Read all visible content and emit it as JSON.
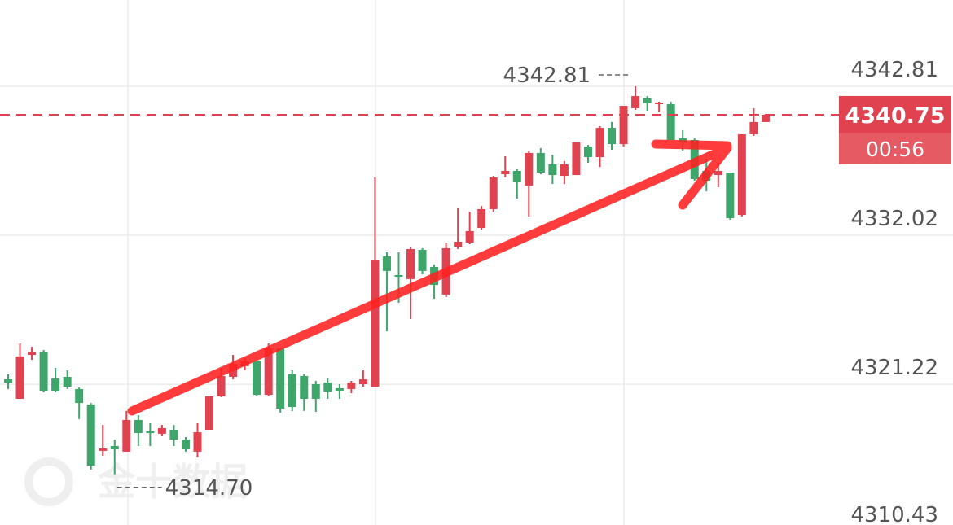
{
  "chart_data": {
    "type": "candlestick",
    "ylim": [
      4311.03,
      4349.06
    ],
    "yticks": [
      4310.43,
      4321.22,
      4332.02,
      4342.81
    ],
    "grid": true,
    "up_color": "#e0434f",
    "down_color": "#3fa66b",
    "open": [
      4321.58,
      4320.17,
      4323.35,
      4323.59,
      4321.64,
      4321.76,
      4320.88,
      4319.76,
      4316.4,
      4316.75,
      4316.34,
      4318.64,
      4317.81,
      4317.64,
      4317.93,
      4317.22,
      4316.34,
      4317.93,
      4320.35,
      4321.76,
      4322.53,
      4322.94,
      4320.46,
      4323.82,
      4321.94,
      4321.82,
      4321.23,
      4321.35,
      4320.94,
      4320.88,
      4321.23,
      4321.05,
      4330.49,
      4329.13,
      4328.84,
      4330.96,
      4329.72,
      4327.72,
      4331.19,
      4331.49,
      4332.55,
      4333.91,
      4336.44,
      4336.68,
      4335.62,
      4337.98,
      4337.15,
      4336.32,
      4336.38,
      4338.45,
      4337.68,
      4339.8,
      4338.62,
      4341.22,
      4341.93,
      4341.51,
      4341.51,
      4339.04,
      4338.92,
      4336.68,
      4336.38,
      4336.56,
      4333.49,
      4339.33,
      4340.22
    ],
    "high": [
      4321.94,
      4324.18,
      4323.94,
      4323.71,
      4322.41,
      4322.23,
      4320.99,
      4319.87,
      4318.28,
      4317.22,
      4319.29,
      4318.99,
      4318.4,
      4318.28,
      4318.28,
      4317.4,
      4318.4,
      4320.35,
      4322.41,
      4323.35,
      4323.12,
      4322.94,
      4324.18,
      4323.82,
      4322.23,
      4321.94,
      4321.47,
      4321.64,
      4321.23,
      4321.47,
      4322.23,
      4336.21,
      4330.78,
      4330.78,
      4331.14,
      4331.08,
      4329.9,
      4331.49,
      4333.97,
      4333.73,
      4334.14,
      4336.32,
      4337.74,
      4336.8,
      4338.15,
      4338.33,
      4337.86,
      4337.39,
      4338.74,
      4338.56,
      4339.92,
      4340.22,
      4341.39,
      4342.81,
      4342.1,
      4341.69,
      4341.69,
      4339.63,
      4339.04,
      4337.56,
      4337.27,
      4336.56,
      4339.33,
      4341.22,
      4340.81
    ],
    "low": [
      4320.88,
      4320.17,
      4323.0,
      4320.64,
      4320.64,
      4320.88,
      4318.7,
      4315.04,
      4316.04,
      4314.7,
      4316.34,
      4316.75,
      4316.75,
      4317.46,
      4316.75,
      4316.34,
      4315.92,
      4317.93,
      4320.29,
      4321.58,
      4322.23,
      4320.41,
      4320.35,
      4319.17,
      4319.29,
      4319.29,
      4319.23,
      4320.17,
      4320.17,
      4320.58,
      4321.05,
      4321.05,
      4325.06,
      4327.13,
      4325.95,
      4329.19,
      4327.42,
      4327.54,
      4331.02,
      4331.37,
      4332.43,
      4333.73,
      4336.21,
      4334.67,
      4333.38,
      4336.44,
      4335.73,
      4335.73,
      4336.38,
      4337.27,
      4336.97,
      4338.21,
      4338.45,
      4341.1,
      4341.04,
      4340.92,
      4338.92,
      4338.15,
      4335.97,
      4335.2,
      4335.5,
      4333.14,
      4333.38,
      4339.21,
      4340.22
    ],
    "close": [
      4321.35,
      4323.24,
      4323.59,
      4320.76,
      4320.76,
      4321.05,
      4319.87,
      4315.33,
      4316.57,
      4316.51,
      4318.64,
      4317.69,
      4317.69,
      4318.05,
      4317.22,
      4316.51,
      4317.75,
      4320.35,
      4321.82,
      4322.7,
      4322.88,
      4320.46,
      4323.82,
      4319.46,
      4319.58,
      4320.17,
      4320.17,
      4320.7,
      4320.76,
      4321.35,
      4321.58,
      4330.19,
      4329.43,
      4329.01,
      4331.02,
      4329.43,
      4328.42,
      4331.08,
      4331.55,
      4332.32,
      4333.91,
      4336.21,
      4336.68,
      4335.85,
      4337.98,
      4336.56,
      4336.38,
      4337.15,
      4338.74,
      4337.68,
      4339.8,
      4338.62,
      4341.39,
      4342.1,
      4341.57,
      4341.63,
      4338.92,
      4338.74,
      4336.09,
      4335.97,
      4336.68,
      4333.26,
      4339.33,
      4340.22,
      4340.75
    ],
    "high_annotation": 4342.81,
    "low_annotation": {
      "value": 4314.7,
      "label": "4314.70"
    },
    "current_price": 4340.75,
    "countdown": "00:56",
    "watermark": "金十数据"
  }
}
